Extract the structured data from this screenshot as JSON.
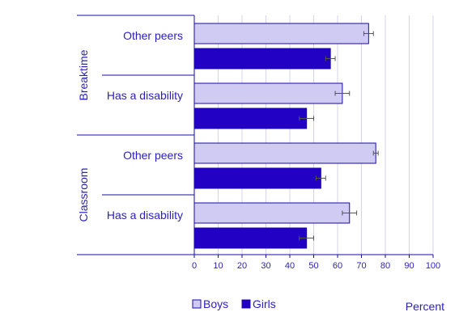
{
  "colors": {
    "text": "#2a1fbf",
    "boys_fill": "#cfcbf2",
    "girls_fill": "#2200c4",
    "bar_stroke": "#1a0aa8",
    "grid": "#d4d4ea",
    "frame": "#1a0aa8",
    "error_bar": "#555555"
  },
  "chart_data": {
    "type": "bar",
    "orientation": "horizontal",
    "groups": [
      {
        "label": "Breaktime",
        "categories": [
          {
            "label": "Other peers",
            "values": {
              "Boys": 73,
              "Girls": 57
            },
            "errors": {
              "Boys": 2,
              "Girls": 2
            }
          },
          {
            "label": "Has a disability",
            "values": {
              "Boys": 62,
              "Girls": 47
            },
            "errors": {
              "Boys": 3,
              "Girls": 3
            }
          }
        ]
      },
      {
        "label": "Classroom",
        "categories": [
          {
            "label": "Other peers",
            "values": {
              "Boys": 76,
              "Girls": 53
            },
            "errors": {
              "Boys": 1,
              "Girls": 2
            }
          },
          {
            "label": "Has a disability",
            "values": {
              "Boys": 65,
              "Girls": 47
            },
            "errors": {
              "Boys": 3,
              "Girls": 3
            }
          }
        ]
      }
    ],
    "series": [
      {
        "name": "Boys",
        "color_key": "boys_fill"
      },
      {
        "name": "Girls",
        "color_key": "girls_fill"
      }
    ],
    "xlim": [
      0,
      100
    ],
    "xticks": [
      0,
      10,
      20,
      30,
      40,
      50,
      60,
      70,
      80,
      90,
      100
    ],
    "xlabel": "Percent",
    "grid": true,
    "legend_position": "bottom"
  }
}
